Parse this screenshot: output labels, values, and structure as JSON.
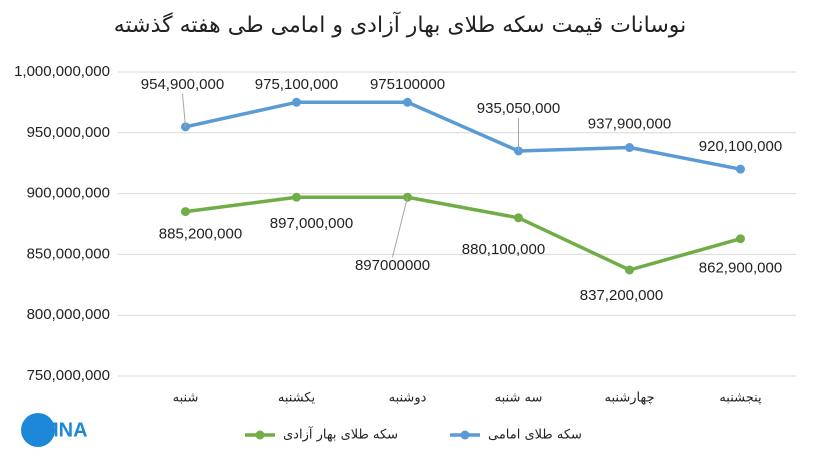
{
  "logo": "IMNA",
  "chart_data": {
    "type": "line",
    "title": "نوسانات قیمت سکه طلای بهار آزادی و امامی طی هفته گذشته",
    "categories": [
      "شنبه",
      "یکشنبه",
      "دوشنبه",
      "سه شنبه",
      "چهارشنبه",
      "پنجشنبه"
    ],
    "series": [
      {
        "name": "سکه طلای بهار آزادی",
        "color": "#70ad47",
        "values": [
          885200000,
          897000000,
          897000000,
          880100000,
          837200000,
          862900000
        ],
        "value_labels": [
          "885,200,000",
          "897,000,000",
          "897000000",
          "880,100,000",
          "837,200,000",
          "862,900,000"
        ]
      },
      {
        "name": "سکه طلای امامی",
        "color": "#5b9bd5",
        "values": [
          954900000,
          975100000,
          975100000,
          935050000,
          937900000,
          920100000
        ],
        "value_labels": [
          "954,900,000",
          "975,100,000",
          "975100000",
          "935,050,000",
          "937,900,000",
          "920,100,000"
        ]
      }
    ],
    "ylim": [
      750000000,
      1000000000
    ],
    "yticks": [
      {
        "value": 750000000,
        "label": "750,000,000"
      },
      {
        "value": 800000000,
        "label": "800,000,000"
      },
      {
        "value": 850000000,
        "label": "850,000,000"
      },
      {
        "value": 900000000,
        "label": "900,000,000"
      },
      {
        "value": 950000000,
        "label": "950,000,000"
      },
      {
        "value": 1000000000,
        "label": "1,000,000,000"
      }
    ],
    "grid": true,
    "legend": "bottom"
  }
}
